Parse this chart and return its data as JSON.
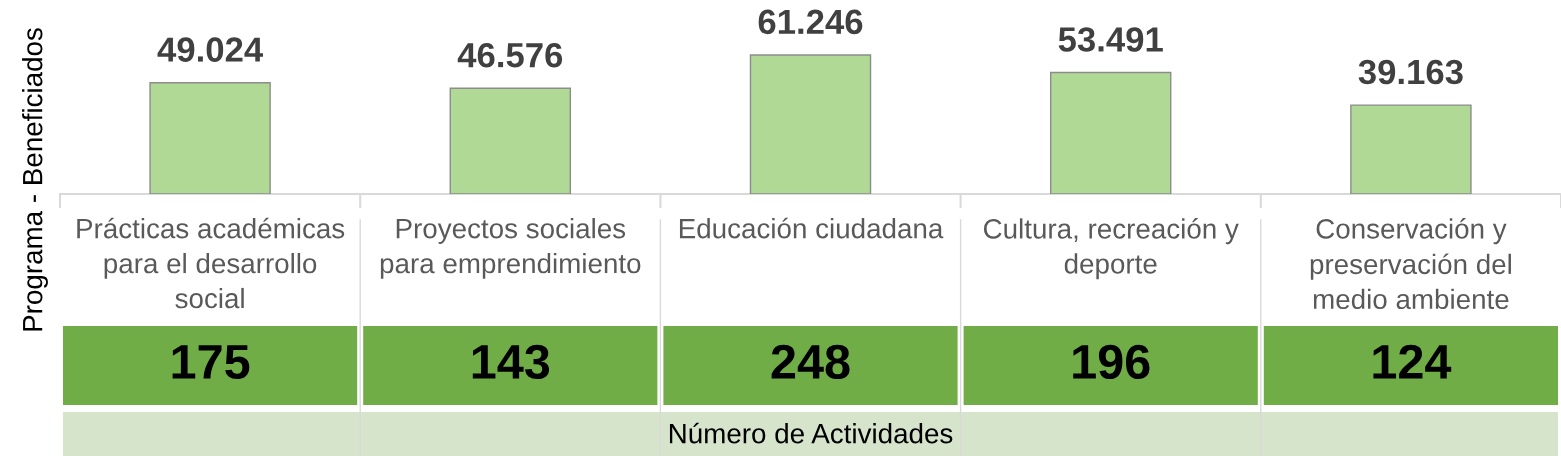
{
  "chart_data": {
    "type": "bar",
    "ylabel": "Programa - Beneficiados",
    "xlabel": "Número de Actividades",
    "categories": [
      "Prácticas académicas para el desarrollo social",
      "Proyectos sociales para emprendimiento",
      "Educación ciudadana",
      "Cultura, recreación y deporte",
      "Conservación y preservación del medio ambiente"
    ],
    "values": [
      49024,
      46576,
      61246,
      53491,
      39163
    ],
    "value_labels": [
      "49.024",
      "46.576",
      "61.246",
      "53.491",
      "39.163"
    ],
    "color": "#b0d995",
    "annotations": [
      "175",
      "143",
      "248",
      "196",
      "124"
    ]
  }
}
